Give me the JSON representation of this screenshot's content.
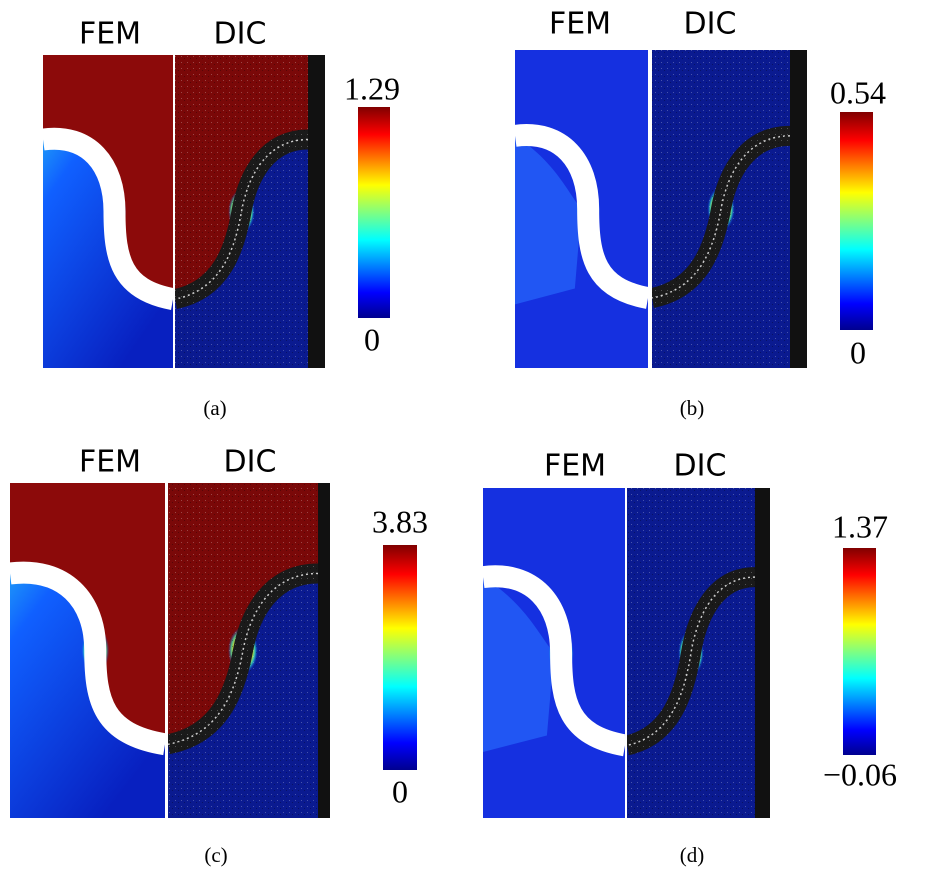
{
  "panels": [
    {
      "fem": "FEM",
      "dic": "DIC",
      "max": "1.29",
      "min": "0",
      "caption": "(a)"
    },
    {
      "fem": "FEM",
      "dic": "DIC",
      "max": "0.54",
      "min": "0",
      "caption": "(b)"
    },
    {
      "fem": "FEM",
      "dic": "DIC",
      "max": "3.83",
      "min": "0",
      "caption": "(c)"
    },
    {
      "fem": "FEM",
      "dic": "DIC",
      "max": "1.37",
      "min": "−0.06",
      "caption": "(d)"
    }
  ]
}
